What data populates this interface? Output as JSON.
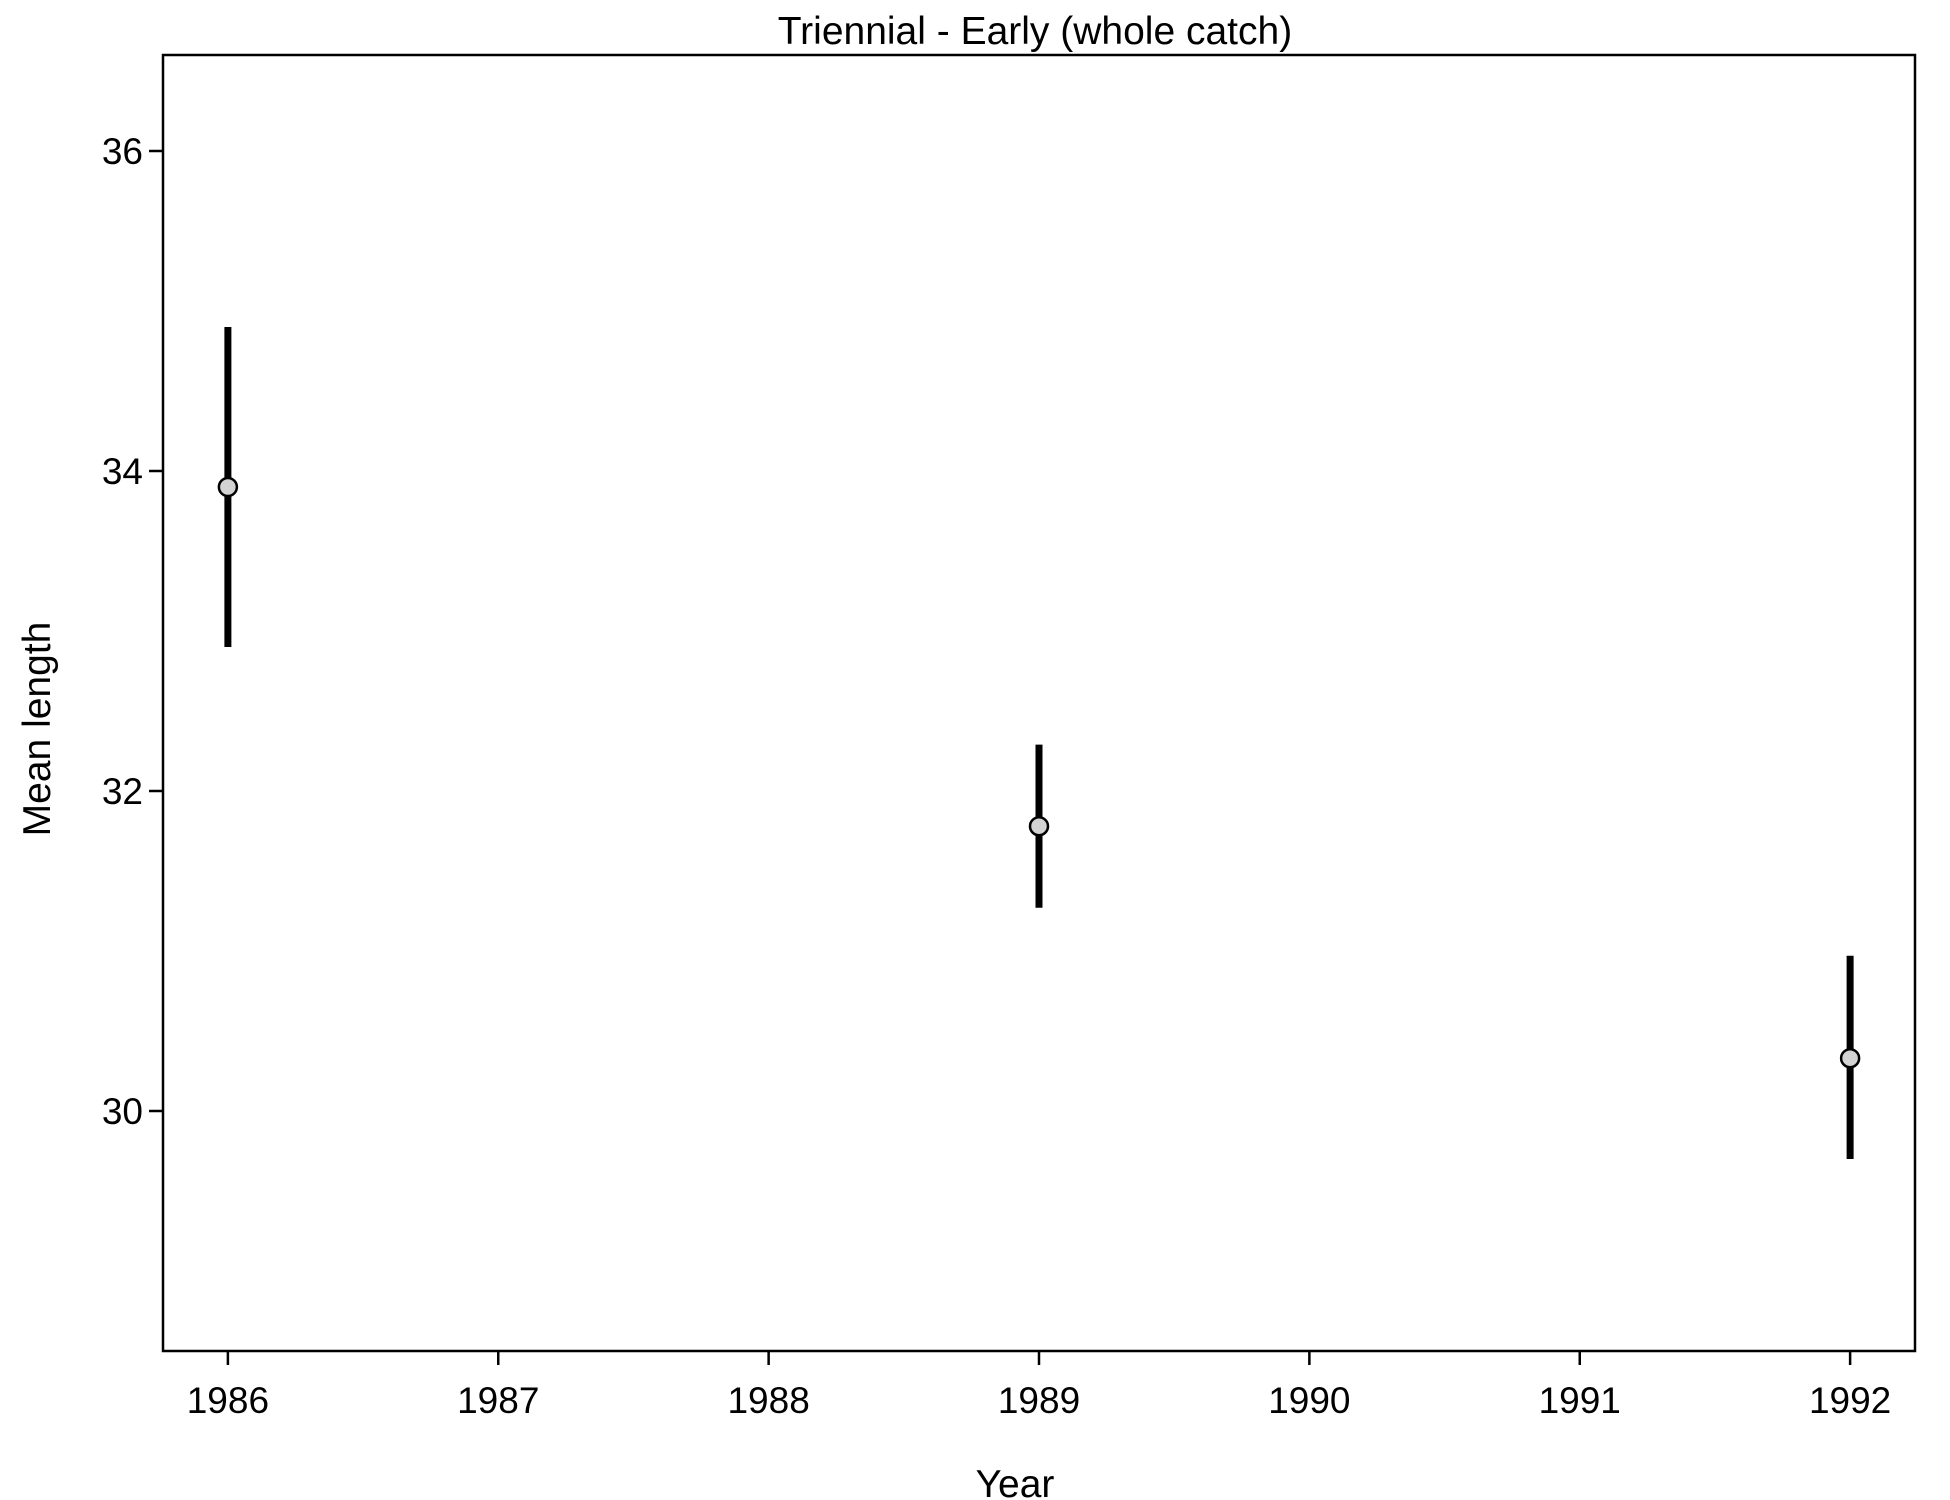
{
  "chart_data": {
    "type": "scatter",
    "title": "Triennial - Early (whole catch)",
    "xlabel": "Year",
    "ylabel": "Mean length",
    "x_ticks": [
      "1986",
      "1987",
      "1988",
      "1989",
      "1990",
      "1991",
      "1992"
    ],
    "y_ticks": [
      "30",
      "32",
      "34",
      "36"
    ],
    "xlim": [
      1985.76,
      1992.24
    ],
    "ylim": [
      28.5,
      36.6
    ],
    "grid": false,
    "series": [
      {
        "points": [
          {
            "x": 1986,
            "y": 33.9,
            "lower": 32.9,
            "upper": 34.9
          },
          {
            "x": 1989,
            "y": 31.78,
            "lower": 31.27,
            "upper": 32.29
          },
          {
            "x": 1992,
            "y": 30.33,
            "lower": 29.7,
            "upper": 30.97
          }
        ]
      }
    ],
    "colors": {
      "errorbar": "#000000",
      "point_fill": "#d3d3d3",
      "point_stroke": "#000000"
    }
  }
}
